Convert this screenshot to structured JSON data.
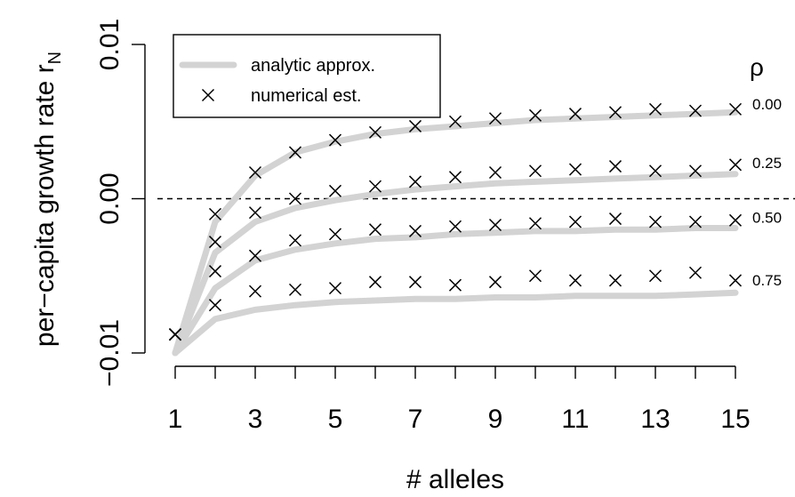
{
  "chart_data": {
    "type": "line",
    "xlabel": "# alleles",
    "ylabel": "per−capita growth rate r",
    "ylabel_subscript": "N",
    "x_ticks": [
      "1",
      "3",
      "5",
      "7",
      "9",
      "11",
      "13",
      "15"
    ],
    "y_ticks": [
      "−0.01",
      "0.00",
      "0.01"
    ],
    "xlim": [
      1,
      15
    ],
    "ylim": [
      -0.01,
      0.01
    ],
    "reference_line": 0,
    "legend": {
      "position": "top-left",
      "items": [
        "analytic approx.",
        "numerical est."
      ]
    },
    "rho_title": "ρ",
    "x": [
      1,
      2,
      3,
      4,
      5,
      6,
      7,
      8,
      9,
      10,
      11,
      12,
      13,
      14,
      15
    ],
    "series": [
      {
        "name": "0.00",
        "analytic": [
          -0.01,
          -0.0015,
          0.0015,
          0.003,
          0.0037,
          0.0042,
          0.0045,
          0.0047,
          0.0049,
          0.0051,
          0.0052,
          0.0053,
          0.0054,
          0.0055,
          0.0056
        ],
        "numerical": [
          -0.0088,
          -0.001,
          0.0017,
          0.003,
          0.0038,
          0.0043,
          0.0047,
          0.005,
          0.0052,
          0.0054,
          0.0055,
          0.0056,
          0.0058,
          0.0057,
          0.0058
        ]
      },
      {
        "name": "0.25",
        "analytic": [
          -0.01,
          -0.0035,
          -0.0015,
          -0.0006,
          -0.0001,
          0.0003,
          0.0006,
          0.0008,
          0.001,
          0.0011,
          0.0012,
          0.0013,
          0.0014,
          0.0015,
          0.0016
        ],
        "numerical": [
          -0.0088,
          -0.0028,
          -0.0009,
          0.0,
          0.0005,
          0.0008,
          0.0011,
          0.0014,
          0.0017,
          0.0018,
          0.0019,
          0.0021,
          0.0018,
          0.0018,
          0.0022
        ]
      },
      {
        "name": "0.50",
        "analytic": [
          -0.01,
          -0.0058,
          -0.004,
          -0.0033,
          -0.0029,
          -0.0026,
          -0.0025,
          -0.0023,
          -0.0022,
          -0.0021,
          -0.0021,
          -0.002,
          -0.002,
          -0.0019,
          -0.0019
        ],
        "numerical": [
          -0.0088,
          -0.0047,
          -0.0037,
          -0.0027,
          -0.0023,
          -0.002,
          -0.0021,
          -0.0018,
          -0.0017,
          -0.0016,
          -0.0015,
          -0.0013,
          -0.0015,
          -0.0015,
          -0.0014
        ]
      },
      {
        "name": "0.75",
        "analytic": [
          -0.01,
          -0.0078,
          -0.0072,
          -0.0069,
          -0.0067,
          -0.0066,
          -0.0065,
          -0.0065,
          -0.0064,
          -0.0064,
          -0.0063,
          -0.0063,
          -0.0063,
          -0.0062,
          -0.0061
        ],
        "numerical": [
          -0.0088,
          -0.0069,
          -0.006,
          -0.0059,
          -0.0058,
          -0.0054,
          -0.0054,
          -0.0056,
          -0.0054,
          -0.005,
          -0.0053,
          -0.0053,
          -0.005,
          -0.0048,
          -0.0053
        ]
      }
    ],
    "colors": {
      "analytic": "#d3d3d3",
      "numerical": "#000000",
      "reference": "#000000"
    }
  }
}
